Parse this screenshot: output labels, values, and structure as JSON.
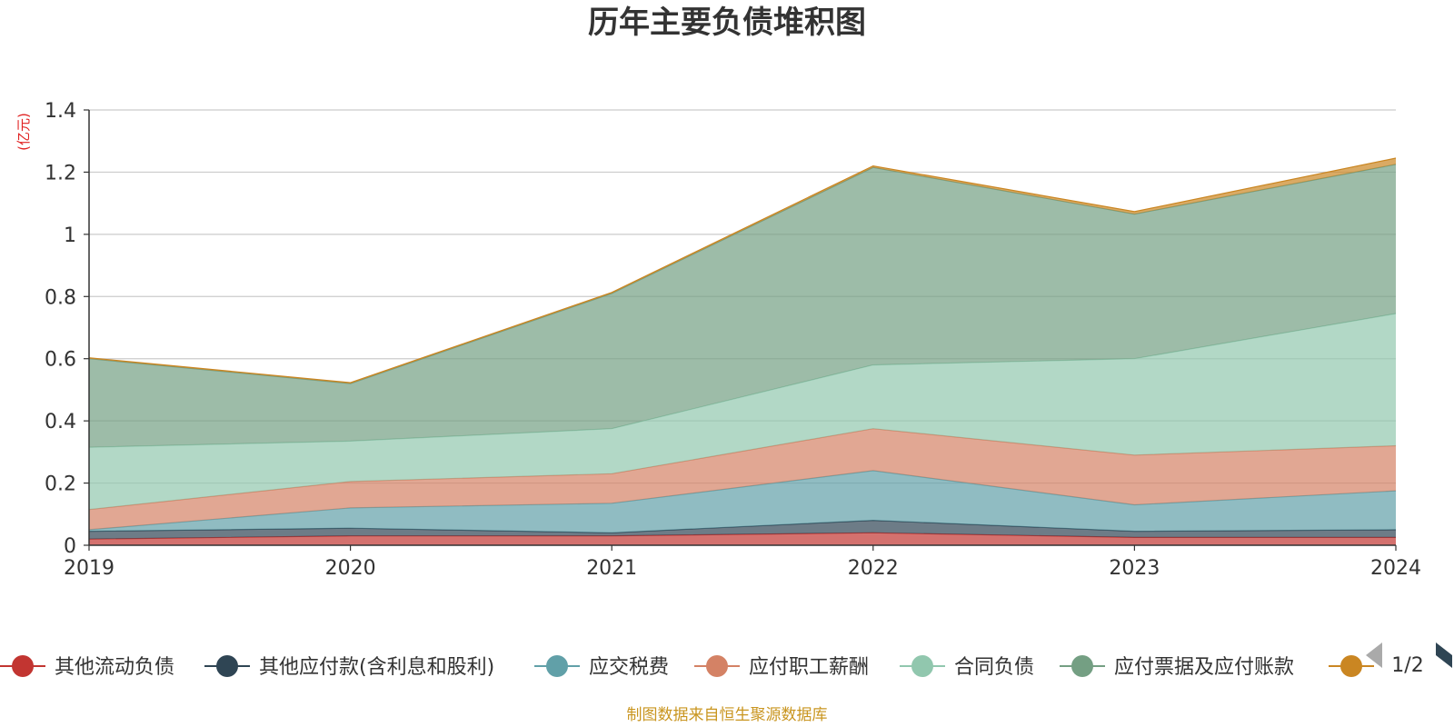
{
  "chart_data": {
    "type": "area",
    "stacked": true,
    "title": "历年主要负债堆积图",
    "unit_label": "(亿元)",
    "x": [
      "2019",
      "2020",
      "2021",
      "2022",
      "2023",
      "2024"
    ],
    "ylim": [
      0,
      1.4
    ],
    "yticks": [
      "0",
      "0.2",
      "0.4",
      "0.6",
      "0.8",
      "1",
      "1.2",
      "1.4"
    ],
    "grid": true,
    "legend_position": "bottom",
    "series": [
      {
        "name": "其他流动负债",
        "color": "#c23531",
        "values": [
          0.02,
          0.03,
          0.03,
          0.04,
          0.025,
          0.025
        ]
      },
      {
        "name": "其他应付款(含利息和股利)",
        "color": "#2f4554",
        "values": [
          0.025,
          0.025,
          0.01,
          0.04,
          0.02,
          0.025
        ]
      },
      {
        "name": "应交税费",
        "color": "#61a0a8",
        "values": [
          0.005,
          0.065,
          0.095,
          0.16,
          0.085,
          0.125
        ]
      },
      {
        "name": "应付职工薪酬",
        "color": "#d48265",
        "values": [
          0.065,
          0.085,
          0.095,
          0.135,
          0.16,
          0.145
        ]
      },
      {
        "name": "合同负债",
        "color": "#91c7ae",
        "values": [
          0.2,
          0.13,
          0.145,
          0.205,
          0.31,
          0.425
        ]
      },
      {
        "name": "应付票据及应付账款",
        "color": "#749f83",
        "values": [
          0.285,
          0.185,
          0.435,
          0.635,
          0.465,
          0.48
        ]
      },
      {
        "name": "",
        "color": "#ca8622",
        "values": [
          0.003,
          0.003,
          0.003,
          0.005,
          0.008,
          0.02
        ]
      }
    ]
  },
  "legend": {
    "pager": "1/2"
  },
  "footer": "制图数据来自恒生聚源数据库",
  "colors": {
    "axis": "#333333",
    "grid": "#cccccc",
    "unit": "#e02020",
    "footer": "#c9951f",
    "pager_active": "#2f4554",
    "pager_inactive": "#aaaaaa"
  }
}
